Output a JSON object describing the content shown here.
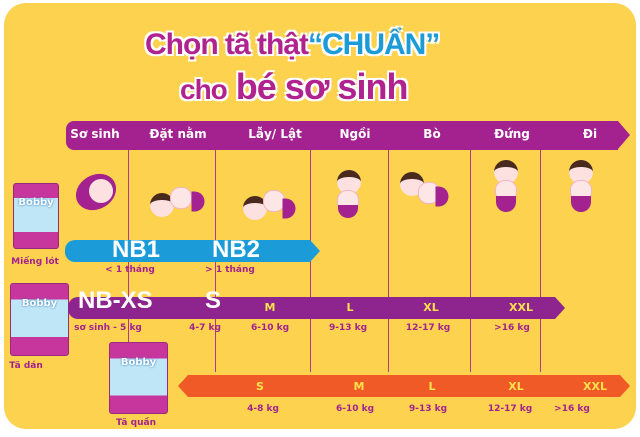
{
  "title": {
    "line1_a": "Chọn tã thật",
    "line1_b": "“CHUẨN”",
    "line2_a": "cho",
    "line2_b": "bé sơ sinh"
  },
  "stages": [
    "Sơ sinh",
    "Đặt nằm",
    "Lẫy/ Lật",
    "Ngồi",
    "Bò",
    "Đứng",
    "Đi"
  ],
  "products": {
    "mieng_lot": "Miếng lót",
    "ta_dan": "Tã dán",
    "ta_quan": "Tã quần",
    "brand": "Bobby"
  },
  "mieng_lot": {
    "sizes": [
      "NB1",
      "NB2"
    ],
    "ages": [
      "< 1 tháng",
      "> 1 tháng"
    ]
  },
  "ta_dan": {
    "big_sizes": [
      "NB-XS",
      "S"
    ],
    "sizes": [
      "M",
      "L",
      "XL",
      "XXL"
    ],
    "weights": [
      "sơ sinh - 5 kg",
      "4-7 kg",
      "6-10 kg",
      "9-13 kg",
      "12-17 kg",
      ">16 kg"
    ]
  },
  "ta_quan": {
    "sizes": [
      "S",
      "M",
      "L",
      "XL",
      "XXL"
    ],
    "weights": [
      "4-8 kg",
      "6-10 kg",
      "9-13 kg",
      "12-17 kg",
      ">16 kg"
    ]
  },
  "colors": {
    "background": "#FDD24F",
    "purple": "#A3228F",
    "blue": "#1B9BD8",
    "orange": "#EF5A27",
    "size_text": "#FFE14A"
  }
}
